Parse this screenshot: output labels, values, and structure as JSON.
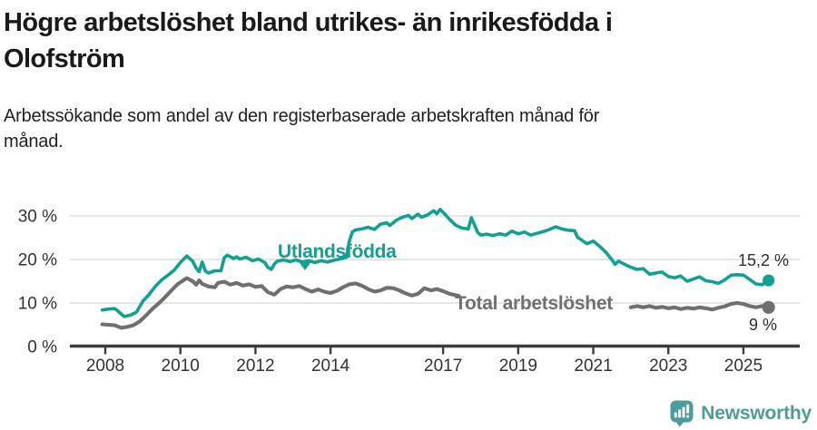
{
  "header": {
    "title_lines": [
      "Högre arbetslöshet bland utrikes- än inrikesfödda i",
      "Olofström"
    ],
    "subtitle_lines": [
      "Arbetssökande som andel av den registerbaserade arbetskraften månad för",
      "månad."
    ]
  },
  "colors": {
    "accent_teal": "#11A091",
    "series_gray": "#6F6F6F",
    "grid": "#D8D8D8",
    "axis": "#3D3D3D",
    "tick_label": "#333333",
    "value_label": "#2E2E2E",
    "brand_teal": "#4E9C98",
    "title_text": "#1A1A1A",
    "body_text": "#212121"
  },
  "chart_data": {
    "type": "line",
    "title": "Högre arbetslöshet bland utrikes- än inrikesfödda i Olofström",
    "subtitle": "Arbetssökande som andel av den registerbaserade arbetskraften månad för månad.",
    "x_axis": {
      "ticks": [
        2008,
        2010,
        2012,
        2014,
        2017,
        2019,
        2021,
        2023,
        2025
      ],
      "range": [
        2007.8,
        2026.3
      ]
    },
    "y_axis": {
      "ticks": [
        0,
        10,
        20,
        30
      ],
      "labels": [
        "0 %",
        "10 %",
        "20 %",
        "30 %"
      ],
      "unit": "%",
      "range": [
        0,
        33
      ]
    },
    "grid": true,
    "series": [
      {
        "name": "Utlandsfödda",
        "color": "#11A091",
        "end_label": "15,2 %",
        "end_value": 15.2,
        "segments": [
          [
            [
              2007.92,
              8.4
            ],
            [
              2008.08,
              8.6
            ],
            [
              2008.25,
              8.7
            ],
            [
              2008.33,
              8.2
            ],
            [
              2008.5,
              6.9
            ],
            [
              2008.67,
              7.2
            ],
            [
              2008.83,
              7.9
            ],
            [
              2009.0,
              10.4
            ],
            [
              2009.17,
              12.0
            ],
            [
              2009.33,
              13.8
            ],
            [
              2009.5,
              15.3
            ],
            [
              2009.67,
              16.4
            ],
            [
              2009.83,
              17.5
            ],
            [
              2010.0,
              19.3
            ],
            [
              2010.08,
              20.0
            ],
            [
              2010.17,
              20.8
            ],
            [
              2010.33,
              19.6
            ],
            [
              2010.42,
              18.0
            ],
            [
              2010.5,
              17.2
            ],
            [
              2010.58,
              19.4
            ],
            [
              2010.67,
              17.3
            ],
            [
              2010.75,
              16.9
            ],
            [
              2010.92,
              17.4
            ],
            [
              2011.08,
              17.4
            ],
            [
              2011.17,
              20.4
            ],
            [
              2011.25,
              21.0
            ],
            [
              2011.42,
              20.2
            ],
            [
              2011.5,
              20.6
            ],
            [
              2011.58,
              20.1
            ],
            [
              2011.75,
              20.5
            ],
            [
              2011.92,
              19.7
            ],
            [
              2012.08,
              20.1
            ],
            [
              2012.25,
              19.3
            ],
            [
              2012.33,
              18.2
            ],
            [
              2012.42,
              17.7
            ],
            [
              2012.5,
              18.9
            ],
            [
              2012.58,
              19.6
            ],
            [
              2012.75,
              19.9
            ],
            [
              2012.92,
              19.5
            ],
            [
              2013.08,
              19.9
            ],
            [
              2013.25,
              19.4
            ],
            [
              2013.42,
              19.7
            ],
            [
              2013.58,
              19.3
            ],
            [
              2013.75,
              19.7
            ],
            [
              2013.92,
              19.4
            ],
            [
              2014.08,
              19.8
            ],
            [
              2014.25,
              20.1
            ],
            [
              2014.42,
              20.5
            ],
            [
              2014.5,
              24.2
            ],
            [
              2014.58,
              26.3
            ],
            [
              2014.67,
              26.8
            ],
            [
              2014.83,
              27.0
            ],
            [
              2015.0,
              27.4
            ],
            [
              2015.17,
              26.9
            ],
            [
              2015.33,
              28.1
            ],
            [
              2015.5,
              28.4
            ],
            [
              2015.58,
              27.8
            ],
            [
              2015.75,
              29.0
            ],
            [
              2015.92,
              29.7
            ],
            [
              2016.08,
              30.1
            ],
            [
              2016.17,
              29.4
            ],
            [
              2016.33,
              30.4
            ],
            [
              2016.42,
              29.7
            ],
            [
              2016.58,
              30.2
            ],
            [
              2016.75,
              31.2
            ],
            [
              2016.83,
              30.5
            ],
            [
              2016.92,
              31.5
            ],
            [
              2017.0,
              30.8
            ],
            [
              2017.17,
              29.2
            ],
            [
              2017.33,
              27.9
            ],
            [
              2017.5,
              27.2
            ],
            [
              2017.67,
              27.0
            ],
            [
              2017.75,
              29.6
            ],
            [
              2017.83,
              28.0
            ],
            [
              2017.92,
              26.2
            ],
            [
              2018.0,
              25.6
            ],
            [
              2018.17,
              25.8
            ],
            [
              2018.33,
              25.5
            ],
            [
              2018.5,
              25.9
            ],
            [
              2018.67,
              25.6
            ],
            [
              2018.83,
              26.5
            ],
            [
              2019.0,
              25.9
            ],
            [
              2019.17,
              26.3
            ],
            [
              2019.33,
              25.6
            ],
            [
              2019.5,
              26.0
            ],
            [
              2019.67,
              26.4
            ],
            [
              2019.83,
              26.9
            ],
            [
              2020.0,
              27.5
            ],
            [
              2020.17,
              27.0
            ],
            [
              2020.33,
              26.7
            ],
            [
              2020.5,
              26.6
            ],
            [
              2020.58,
              25.1
            ],
            [
              2020.75,
              24.1
            ],
            [
              2020.83,
              23.6
            ],
            [
              2021.0,
              24.2
            ],
            [
              2021.17,
              23.0
            ],
            [
              2021.33,
              21.7
            ],
            [
              2021.5,
              19.9
            ],
            [
              2021.58,
              18.9
            ],
            [
              2021.67,
              19.6
            ],
            [
              2021.83,
              18.9
            ],
            [
              2022.0,
              18.2
            ],
            [
              2022.17,
              17.7
            ],
            [
              2022.33,
              17.9
            ],
            [
              2022.5,
              16.6
            ],
            [
              2022.67,
              16.9
            ],
            [
              2022.83,
              17.1
            ],
            [
              2023.0,
              16.1
            ],
            [
              2023.17,
              15.8
            ],
            [
              2023.33,
              16.2
            ],
            [
              2023.5,
              15.0
            ],
            [
              2023.67,
              15.5
            ],
            [
              2023.83,
              16.0
            ],
            [
              2024.0,
              15.1
            ],
            [
              2024.17,
              14.9
            ],
            [
              2024.33,
              14.5
            ],
            [
              2024.5,
              15.3
            ],
            [
              2024.67,
              16.4
            ],
            [
              2024.83,
              16.5
            ],
            [
              2025.0,
              16.4
            ],
            [
              2025.17,
              15.4
            ],
            [
              2025.33,
              14.4
            ],
            [
              2025.5,
              14.2
            ],
            [
              2025.58,
              14.7
            ],
            [
              2025.67,
              15.2
            ]
          ]
        ]
      },
      {
        "name": "Total arbetslöshet",
        "color": "#6F6F6F",
        "end_label": "9 %",
        "end_value": 9.0,
        "segments": [
          [
            [
              2007.92,
              5.1
            ],
            [
              2008.08,
              5.0
            ],
            [
              2008.25,
              4.9
            ],
            [
              2008.42,
              4.3
            ],
            [
              2008.58,
              4.5
            ],
            [
              2008.75,
              4.9
            ],
            [
              2008.92,
              5.8
            ],
            [
              2009.08,
              7.1
            ],
            [
              2009.25,
              8.6
            ],
            [
              2009.42,
              9.9
            ],
            [
              2009.58,
              11.2
            ],
            [
              2009.75,
              12.8
            ],
            [
              2009.92,
              14.3
            ],
            [
              2010.08,
              15.2
            ],
            [
              2010.17,
              15.7
            ],
            [
              2010.33,
              15.0
            ],
            [
              2010.42,
              14.2
            ],
            [
              2010.5,
              15.2
            ],
            [
              2010.58,
              14.4
            ],
            [
              2010.75,
              13.8
            ],
            [
              2010.92,
              13.6
            ],
            [
              2011.0,
              14.6
            ],
            [
              2011.17,
              14.9
            ],
            [
              2011.33,
              14.2
            ],
            [
              2011.5,
              14.6
            ],
            [
              2011.67,
              14.0
            ],
            [
              2011.83,
              14.3
            ],
            [
              2012.0,
              13.7
            ],
            [
              2012.17,
              13.9
            ],
            [
              2012.33,
              12.5
            ],
            [
              2012.5,
              11.9
            ],
            [
              2012.67,
              13.2
            ],
            [
              2012.83,
              13.8
            ],
            [
              2013.0,
              13.6
            ],
            [
              2013.17,
              13.9
            ],
            [
              2013.33,
              13.2
            ],
            [
              2013.5,
              12.6
            ],
            [
              2013.67,
              13.1
            ],
            [
              2013.83,
              12.6
            ],
            [
              2014.0,
              12.3
            ],
            [
              2014.17,
              12.8
            ],
            [
              2014.33,
              13.6
            ],
            [
              2014.5,
              14.3
            ],
            [
              2014.67,
              14.5
            ],
            [
              2014.83,
              14.0
            ],
            [
              2015.0,
              13.2
            ],
            [
              2015.17,
              12.6
            ],
            [
              2015.33,
              12.9
            ],
            [
              2015.5,
              13.5
            ],
            [
              2015.67,
              13.4
            ],
            [
              2015.83,
              12.9
            ],
            [
              2016.0,
              12.2
            ],
            [
              2016.17,
              11.7
            ],
            [
              2016.33,
              12.1
            ],
            [
              2016.5,
              13.4
            ],
            [
              2016.67,
              12.9
            ],
            [
              2016.83,
              13.2
            ],
            [
              2017.0,
              12.7
            ],
            [
              2017.17,
              12.1
            ],
            [
              2017.33,
              11.8
            ],
            [
              2017.42,
              11.6
            ]
          ],
          [
            [
              2022.0,
              9.0
            ],
            [
              2022.17,
              9.3
            ],
            [
              2022.33,
              9.0
            ],
            [
              2022.5,
              9.3
            ],
            [
              2022.67,
              8.9
            ],
            [
              2022.83,
              9.1
            ],
            [
              2023.0,
              8.8
            ],
            [
              2023.17,
              9.0
            ],
            [
              2023.33,
              8.6
            ],
            [
              2023.5,
              8.9
            ],
            [
              2023.67,
              8.7
            ],
            [
              2023.83,
              9.0
            ],
            [
              2024.0,
              8.8
            ],
            [
              2024.17,
              8.5
            ],
            [
              2024.33,
              8.9
            ],
            [
              2024.5,
              9.2
            ],
            [
              2024.67,
              9.8
            ],
            [
              2024.83,
              10.0
            ],
            [
              2025.0,
              9.8
            ],
            [
              2025.17,
              9.3
            ],
            [
              2025.33,
              9.0
            ],
            [
              2025.5,
              9.3
            ],
            [
              2025.67,
              9.0
            ]
          ]
        ]
      }
    ],
    "legend_position": "inline-labels"
  },
  "footer": {
    "brand": "Newsworthy"
  }
}
